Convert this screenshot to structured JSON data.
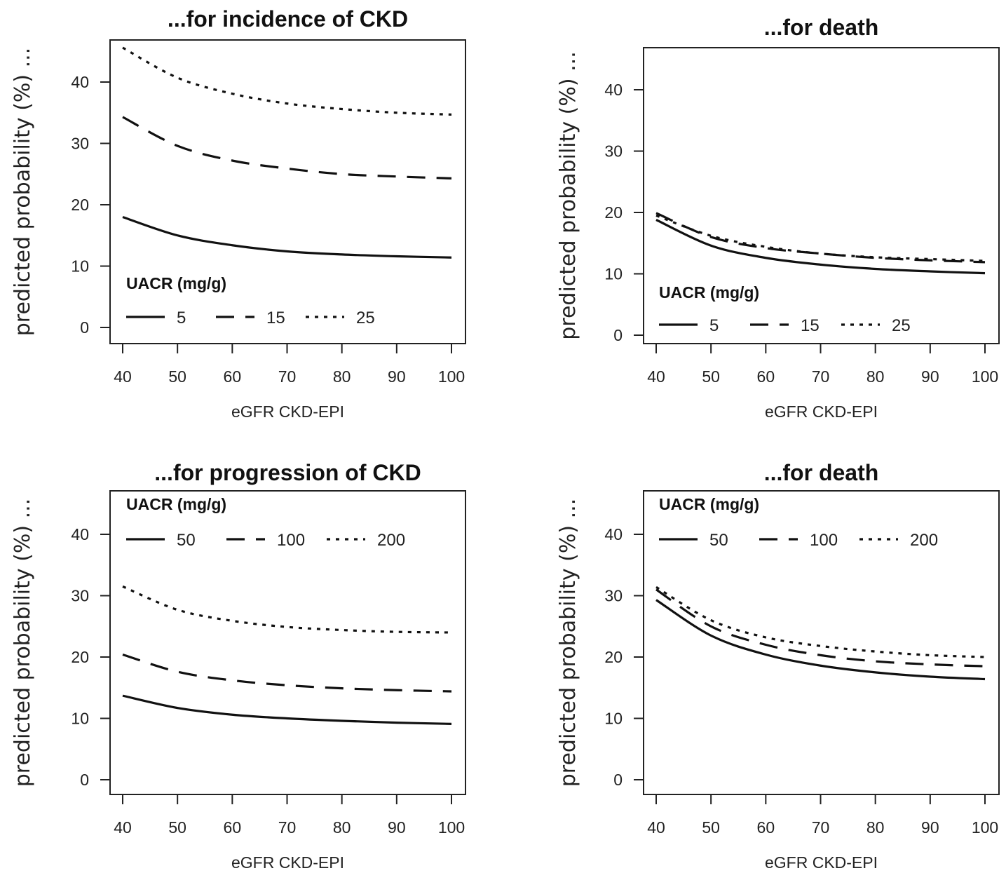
{
  "chart_data": [
    {
      "type": "line",
      "title": "...for incidence of CKD",
      "xlabel": "eGFR CKD-EPI",
      "ylabel": "predicted probability (%) ...",
      "xlim": [
        40,
        100
      ],
      "ylim": [
        0,
        45
      ],
      "xticks": [
        40,
        50,
        60,
        70,
        80,
        90,
        100
      ],
      "yticks": [
        0,
        10,
        20,
        30,
        40
      ],
      "legend_title": "UACR (mg/g)",
      "legend_position": "bottom-left",
      "x": [
        40,
        50,
        60,
        70,
        80,
        90,
        100
      ],
      "series": [
        {
          "name": "5",
          "style": "solid",
          "values": [
            18.0,
            15.0,
            13.4,
            12.4,
            11.9,
            11.6,
            11.4
          ]
        },
        {
          "name": "15",
          "style": "dashed",
          "values": [
            34.3,
            29.6,
            27.2,
            25.9,
            25.0,
            24.6,
            24.3
          ]
        },
        {
          "name": "25",
          "style": "dotted",
          "values": [
            45.6,
            40.7,
            38.1,
            36.5,
            35.6,
            35.0,
            34.7
          ]
        }
      ]
    },
    {
      "type": "line",
      "title": "...for death",
      "xlabel": "eGFR CKD-EPI",
      "ylabel": "predicted probability (%) ...",
      "xlim": [
        40,
        100
      ],
      "ylim": [
        0,
        45
      ],
      "xticks": [
        40,
        50,
        60,
        70,
        80,
        90,
        100
      ],
      "yticks": [
        0,
        10,
        20,
        30,
        40
      ],
      "legend_title": "UACR (mg/g)",
      "legend_position": "bottom-left",
      "x": [
        40,
        50,
        60,
        70,
        80,
        90,
        100
      ],
      "series": [
        {
          "name": "5",
          "style": "solid",
          "values": [
            18.8,
            14.6,
            12.6,
            11.5,
            10.8,
            10.4,
            10.1
          ]
        },
        {
          "name": "15",
          "style": "dashed",
          "values": [
            19.9,
            16.0,
            14.2,
            13.3,
            12.6,
            12.2,
            11.9
          ]
        },
        {
          "name": "25",
          "style": "dotted",
          "values": [
            19.5,
            16.2,
            14.4,
            13.3,
            12.7,
            12.4,
            12.1
          ]
        }
      ]
    },
    {
      "type": "line",
      "title": "...for progression of CKD",
      "xlabel": "eGFR CKD-EPI",
      "ylabel": "predicted probability (%) ...",
      "xlim": [
        40,
        100
      ],
      "ylim": [
        0,
        45
      ],
      "xticks": [
        40,
        50,
        60,
        70,
        80,
        90,
        100
      ],
      "yticks": [
        0,
        10,
        20,
        30,
        40
      ],
      "legend_title": "UACR (mg/g)",
      "legend_position": "top-left",
      "x": [
        40,
        50,
        60,
        70,
        80,
        90,
        100
      ],
      "series": [
        {
          "name": "50",
          "style": "solid",
          "values": [
            13.7,
            11.7,
            10.6,
            10.0,
            9.6,
            9.3,
            9.1
          ]
        },
        {
          "name": "100",
          "style": "dashed",
          "values": [
            20.4,
            17.6,
            16.2,
            15.4,
            14.9,
            14.6,
            14.4
          ]
        },
        {
          "name": "200",
          "style": "dotted",
          "values": [
            31.5,
            27.7,
            25.9,
            24.9,
            24.4,
            24.1,
            24.0
          ]
        }
      ]
    },
    {
      "type": "line",
      "title": "...for death",
      "xlabel": "eGFR CKD-EPI",
      "ylabel": "predicted probability (%) ...",
      "xlim": [
        40,
        100
      ],
      "ylim": [
        0,
        45
      ],
      "xticks": [
        40,
        50,
        60,
        70,
        80,
        90,
        100
      ],
      "yticks": [
        0,
        10,
        20,
        30,
        40
      ],
      "legend_title": "UACR (mg/g)",
      "legend_position": "top-left",
      "x": [
        40,
        50,
        60,
        70,
        80,
        90,
        100
      ],
      "series": [
        {
          "name": "50",
          "style": "solid",
          "values": [
            29.3,
            23.5,
            20.4,
            18.6,
            17.5,
            16.8,
            16.4
          ]
        },
        {
          "name": "100",
          "style": "dashed",
          "values": [
            31.0,
            25.0,
            22.0,
            20.3,
            19.3,
            18.8,
            18.5
          ]
        },
        {
          "name": "200",
          "style": "dotted",
          "values": [
            31.4,
            26.0,
            23.2,
            21.8,
            20.9,
            20.3,
            20.0
          ]
        }
      ]
    }
  ]
}
